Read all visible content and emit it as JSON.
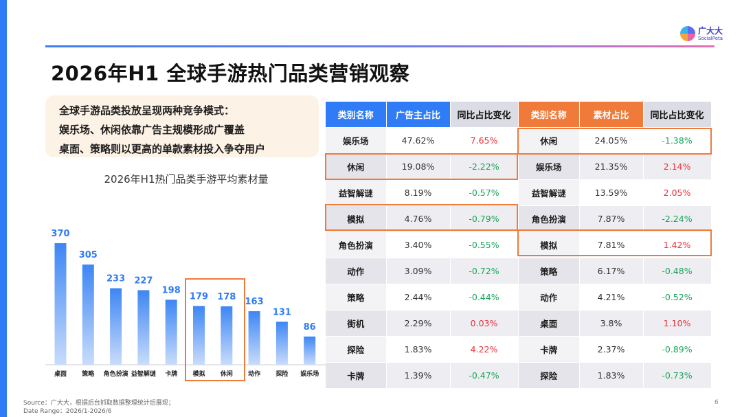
{
  "brand": {
    "name_cn": "广大大",
    "name_en": "SocialPeta"
  },
  "title": "2026年H1 全球手游热门品类营销观察",
  "callout": [
    "全球手游品类投放呈现两种竞争模式：",
    "娱乐场、休闲依靠广告主规模形成广覆盖",
    "桌面、策略则以更高的单款素材投入争夺用户"
  ],
  "colors": {
    "accent_blue": "#2f7cf6",
    "header_blue": "#2f7cf6",
    "header_orange": "#f07a3a",
    "highlight": "#f07a3a",
    "positive": "#e8323c",
    "negative": "#19a55a"
  },
  "chart_data": {
    "type": "bar",
    "title": "2026年H1热门品类手游平均素材量",
    "categories": [
      "桌面",
      "策略",
      "角色扮演",
      "益智解谜",
      "卡牌",
      "模拟",
      "休闲",
      "动作",
      "探险",
      "娱乐场"
    ],
    "values": [
      370,
      305,
      233,
      227,
      198,
      179,
      178,
      163,
      131,
      86
    ],
    "data_labels": [
      "370",
      "305",
      "233",
      "227",
      "198",
      "179",
      "178",
      "163",
      "131",
      "86"
    ],
    "highlighted": [
      "模拟",
      "休闲"
    ],
    "grid": false,
    "legend": "none"
  },
  "table_ads": {
    "headers": [
      "类别名称",
      "广告主占比",
      "同比占比变化"
    ],
    "rows": [
      {
        "cat": "娱乐场",
        "share": "47.62%",
        "change": "7.65%",
        "dir": "up"
      },
      {
        "cat": "休闲",
        "share": "19.08%",
        "change": "-2.22%",
        "dir": "down"
      },
      {
        "cat": "益智解谜",
        "share": "8.19%",
        "change": "-0.57%",
        "dir": "down"
      },
      {
        "cat": "模拟",
        "share": "4.76%",
        "change": "-0.79%",
        "dir": "down"
      },
      {
        "cat": "角色扮演",
        "share": "3.40%",
        "change": "-0.55%",
        "dir": "down"
      },
      {
        "cat": "动作",
        "share": "3.09%",
        "change": "-0.72%",
        "dir": "down"
      },
      {
        "cat": "策略",
        "share": "2.44%",
        "change": "-0.44%",
        "dir": "down"
      },
      {
        "cat": "街机",
        "share": "2.29%",
        "change": "0.03%",
        "dir": "up"
      },
      {
        "cat": "探险",
        "share": "1.83%",
        "change": "4.22%",
        "dir": "up"
      },
      {
        "cat": "卡牌",
        "share": "1.39%",
        "change": "-0.47%",
        "dir": "down"
      }
    ]
  },
  "table_creatives": {
    "headers": [
      "类别名称",
      "素材占比",
      "同比占比变化"
    ],
    "rows": [
      {
        "cat": "休闲",
        "share": "24.05%",
        "change": "-1.38%",
        "dir": "down"
      },
      {
        "cat": "娱乐场",
        "share": "21.35%",
        "change": "2.14%",
        "dir": "up"
      },
      {
        "cat": "益智解谜",
        "share": "13.59%",
        "change": "2.05%",
        "dir": "up"
      },
      {
        "cat": "角色扮演",
        "share": "7.87%",
        "change": "-2.24%",
        "dir": "down"
      },
      {
        "cat": "模拟",
        "share": "7.81%",
        "change": "1.42%",
        "dir": "up"
      },
      {
        "cat": "策略",
        "share": "6.17%",
        "change": "-0.48%",
        "dir": "down"
      },
      {
        "cat": "动作",
        "share": "4.21%",
        "change": "-0.52%",
        "dir": "down"
      },
      {
        "cat": "桌面",
        "share": "3.8%",
        "change": "1.10%",
        "dir": "up"
      },
      {
        "cat": "卡牌",
        "share": "2.37%",
        "change": "-0.89%",
        "dir": "down"
      },
      {
        "cat": "探险",
        "share": "1.83%",
        "change": "-0.73%",
        "dir": "down"
      }
    ]
  },
  "footer": {
    "source": "Source：广大大，根据后台抓取数据整理统计后展现；",
    "date_range": "Date Range：2026/1-2026/6"
  },
  "page_number": "6"
}
